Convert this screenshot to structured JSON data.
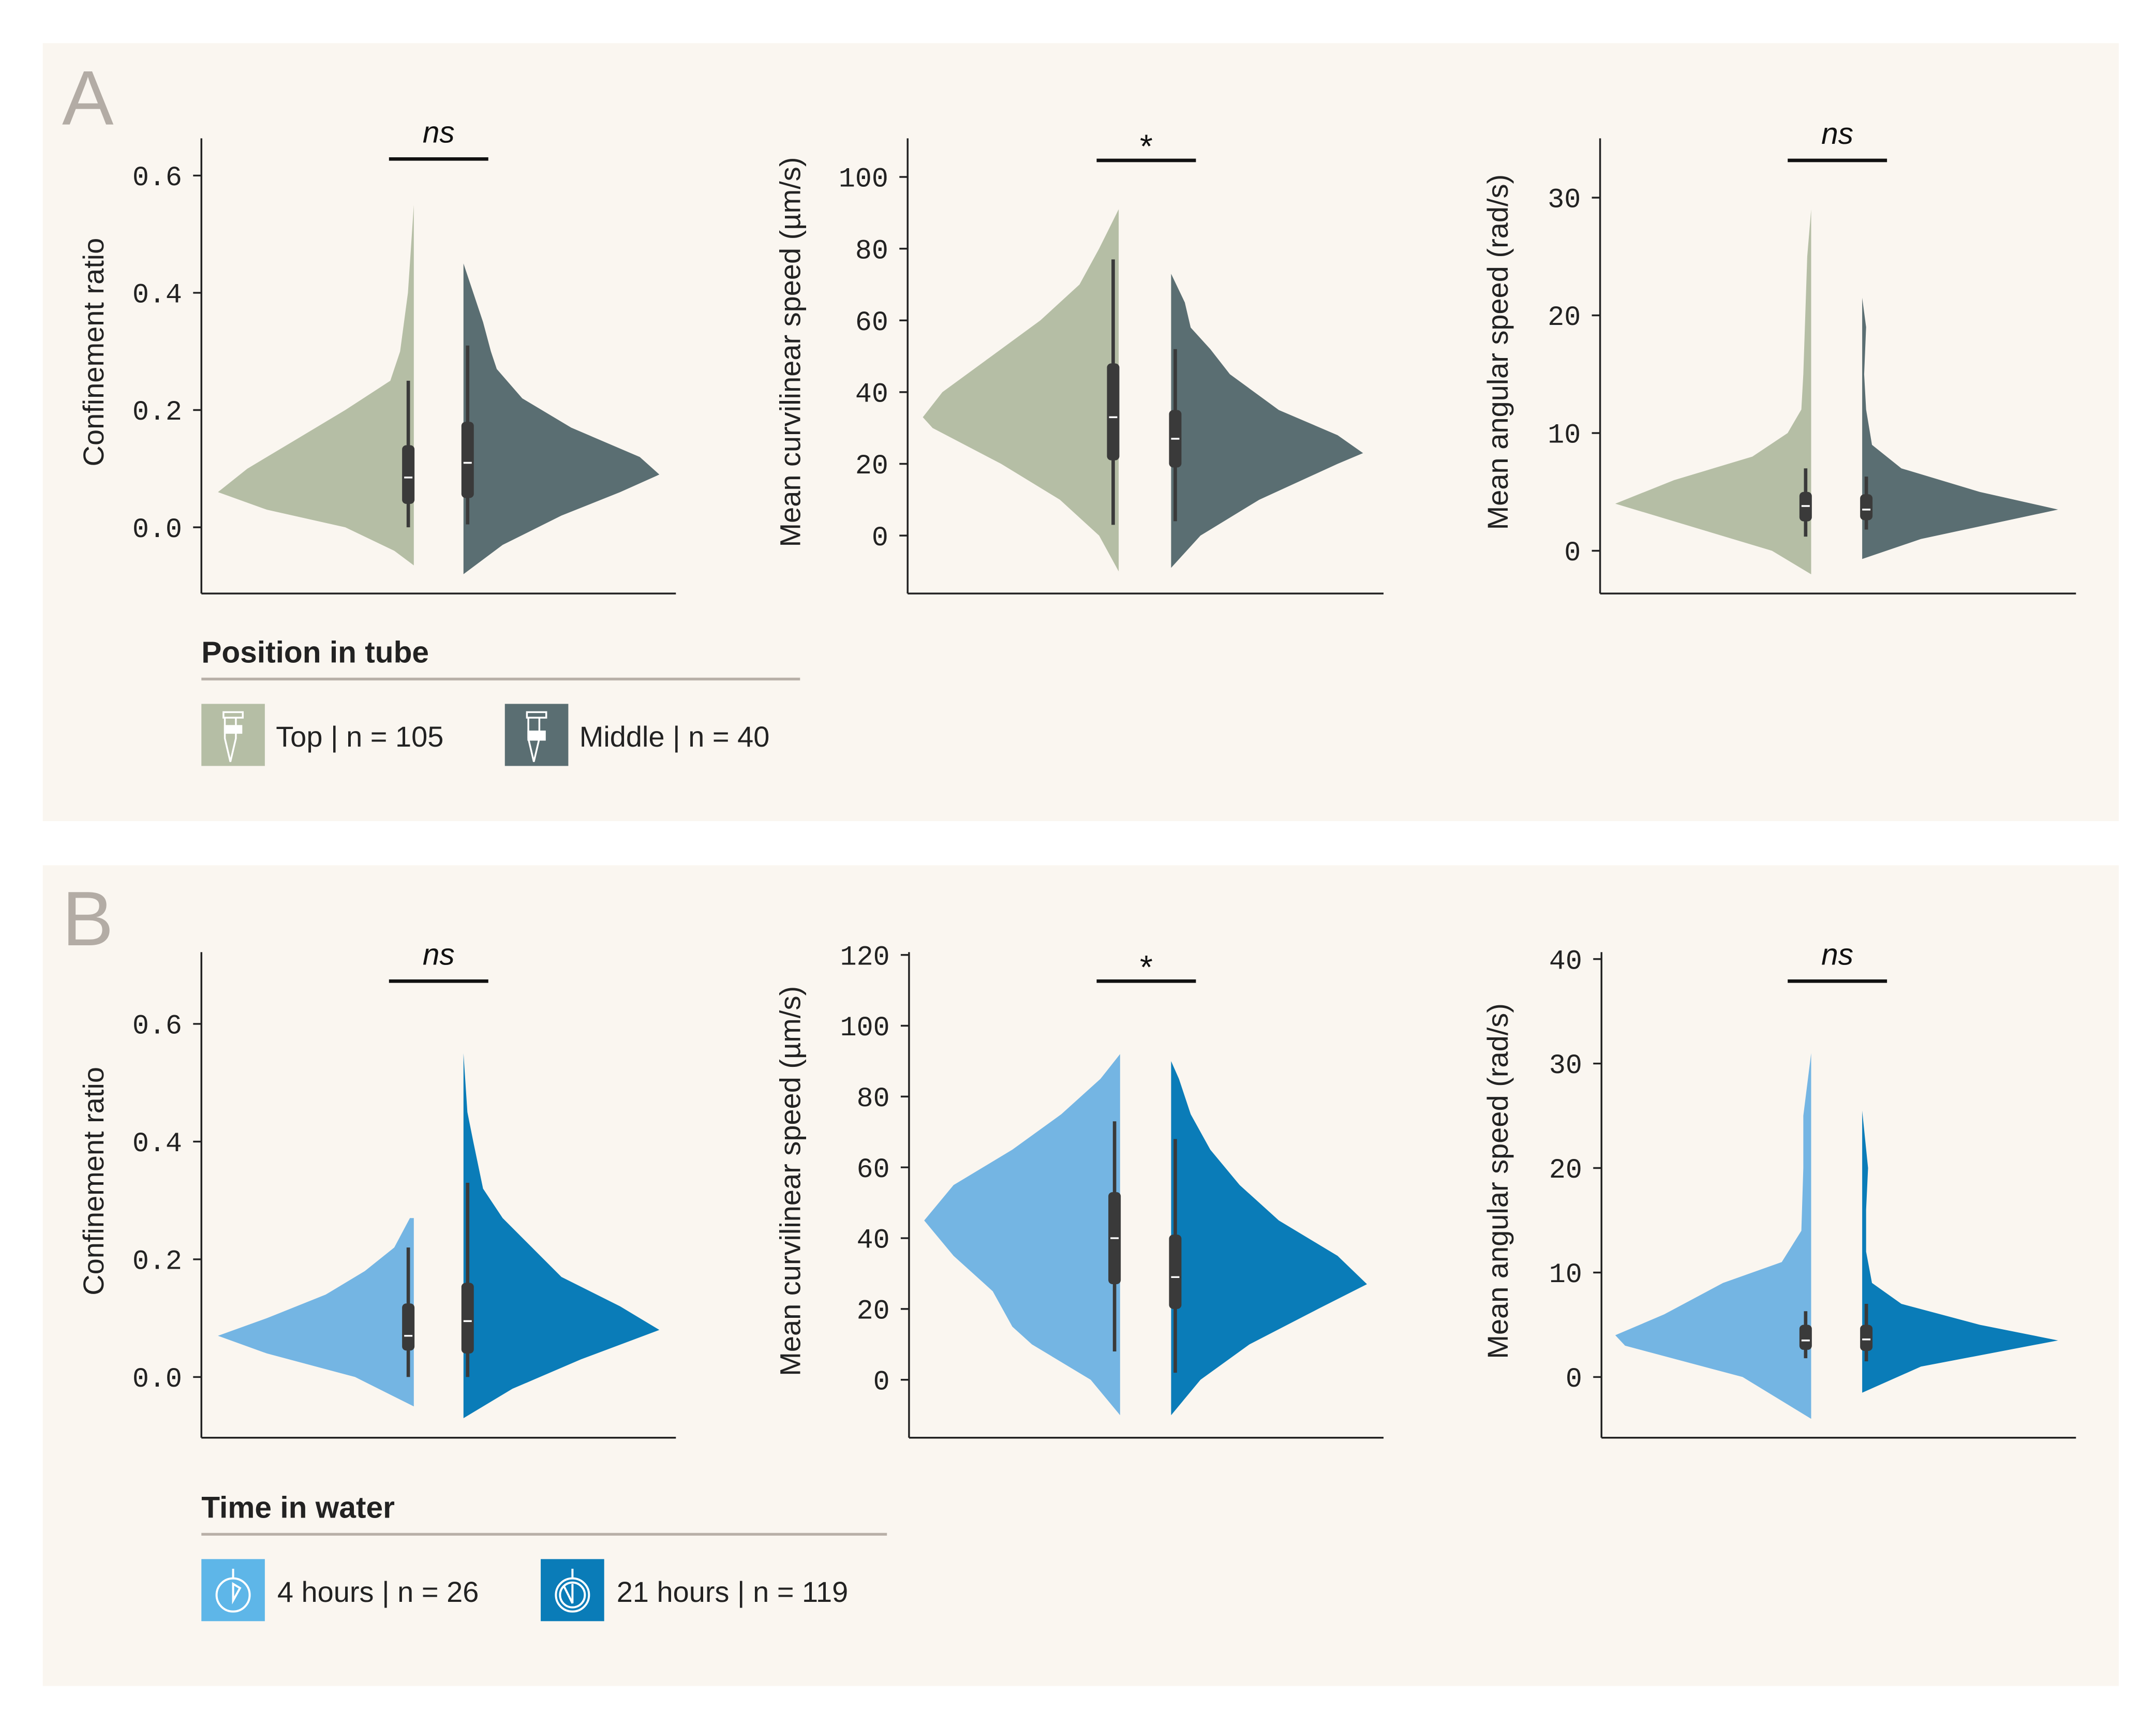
{
  "colors": {
    "top": "#b5bea5",
    "middle": "#5a6e72",
    "four_hours": "#74b5e3",
    "twenty_one_hours": "#0a7cb8",
    "panel_bg": "#faf6f0",
    "panel_letter": "#b3aca5",
    "box": "#3a3a3a"
  },
  "panels": [
    {
      "letter": "A",
      "legend": {
        "title": "Position in tube",
        "items": [
          {
            "label": "Top | n = 105",
            "icon": "tube-top-icon",
            "color_key": "top"
          },
          {
            "label": "Middle | n = 40",
            "icon": "tube-middle-icon",
            "color_key": "middle"
          }
        ]
      }
    },
    {
      "letter": "B",
      "legend": {
        "title": "Time in water",
        "items": [
          {
            "label": "4 hours | n = 26",
            "icon": "stopwatch-4h-icon",
            "color_key": "four_hours"
          },
          {
            "label": "21 hours  | n = 119",
            "icon": "stopwatch-21h-icon",
            "color_key": "twenty_one_hours"
          }
        ]
      }
    }
  ],
  "chart_data": [
    {
      "type": "violin",
      "panel": "A",
      "ylabel": "Confinement ratio",
      "significance": "ns",
      "yticks": [
        "0.0",
        "0.2",
        "0.4",
        "0.6"
      ],
      "ytick_values": [
        0,
        0.2,
        0.4,
        0.6
      ],
      "series": [
        {
          "name": "Top | n = 105",
          "color_key": "top",
          "side": "left",
          "density": [
            [
              -0.065,
              0
            ],
            [
              -0.04,
              0.1
            ],
            [
              0,
              0.35
            ],
            [
              0.03,
              0.75
            ],
            [
              0.06,
              1
            ],
            [
              0.1,
              0.85
            ],
            [
              0.15,
              0.6
            ],
            [
              0.2,
              0.35
            ],
            [
              0.25,
              0.12
            ],
            [
              0.3,
              0.07
            ],
            [
              0.35,
              0.05
            ],
            [
              0.4,
              0.03
            ],
            [
              0.45,
              0.02
            ],
            [
              0.5,
              0.01
            ],
            [
              0.55,
              0
            ]
          ],
          "box": {
            "whisker_low": 0,
            "q1": 0.04,
            "median": 0.085,
            "q3": 0.14,
            "whisker_high": 0.25
          }
        },
        {
          "name": "Middle | n = 40",
          "color_key": "middle",
          "side": "right",
          "density": [
            [
              -0.08,
              0
            ],
            [
              -0.03,
              0.2
            ],
            [
              0.02,
              0.5
            ],
            [
              0.06,
              0.8
            ],
            [
              0.09,
              1
            ],
            [
              0.12,
              0.9
            ],
            [
              0.17,
              0.55
            ],
            [
              0.22,
              0.3
            ],
            [
              0.27,
              0.17
            ],
            [
              0.3,
              0.14
            ],
            [
              0.35,
              0.1
            ],
            [
              0.4,
              0.05
            ],
            [
              0.45,
              0
            ]
          ],
          "box": {
            "whisker_low": 0.005,
            "q1": 0.05,
            "median": 0.11,
            "q3": 0.18,
            "whisker_high": 0.31
          }
        }
      ]
    },
    {
      "type": "violin",
      "panel": "A",
      "ylabel": "Mean curvilinear speed (µm/s)",
      "significance": "*",
      "yticks": [
        "0",
        "20",
        "40",
        "60",
        "80",
        "100"
      ],
      "ytick_values": [
        0,
        20,
        40,
        60,
        80,
        100
      ],
      "series": [
        {
          "name": "Top | n = 105",
          "color_key": "top",
          "side": "left",
          "density": [
            [
              -10,
              0
            ],
            [
              0,
              0.1
            ],
            [
              10,
              0.3
            ],
            [
              20,
              0.6
            ],
            [
              30,
              0.95
            ],
            [
              33,
              1
            ],
            [
              40,
              0.9
            ],
            [
              50,
              0.65
            ],
            [
              60,
              0.4
            ],
            [
              70,
              0.2
            ],
            [
              80,
              0.1
            ],
            [
              91,
              0
            ]
          ],
          "box": {
            "whisker_low": 3,
            "q1": 21,
            "median": 33,
            "q3": 48,
            "whisker_high": 77
          }
        },
        {
          "name": "Middle | n = 40",
          "color_key": "middle",
          "side": "right",
          "density": [
            [
              -9,
              0
            ],
            [
              0,
              0.15
            ],
            [
              10,
              0.45
            ],
            [
              20,
              0.85
            ],
            [
              23,
              0.98
            ],
            [
              28,
              0.85
            ],
            [
              35,
              0.55
            ],
            [
              45,
              0.3
            ],
            [
              52,
              0.2
            ],
            [
              58,
              0.1
            ],
            [
              65,
              0.07
            ],
            [
              73,
              0
            ]
          ],
          "box": {
            "whisker_low": 4,
            "q1": 19,
            "median": 27,
            "q3": 35,
            "whisker_high": 52
          }
        }
      ]
    },
    {
      "type": "violin",
      "panel": "A",
      "ylabel": "Mean angular speed (rad/s)",
      "significance": "ns",
      "yticks": [
        "0",
        "10",
        "20",
        "30"
      ],
      "ytick_values": [
        0,
        10,
        20,
        30
      ],
      "series": [
        {
          "name": "Top | n = 105",
          "color_key": "top",
          "side": "left",
          "density": [
            [
              -2,
              0
            ],
            [
              0,
              0.2
            ],
            [
              2,
              0.6
            ],
            [
              4,
              1
            ],
            [
              6,
              0.7
            ],
            [
              8,
              0.3
            ],
            [
              10,
              0.12
            ],
            [
              12,
              0.05
            ],
            [
              15,
              0.04
            ],
            [
              20,
              0.03
            ],
            [
              25,
              0.02
            ],
            [
              29,
              0
            ]
          ],
          "box": {
            "whisker_low": 1.2,
            "q1": 2.5,
            "median": 3.8,
            "q3": 5,
            "whisker_high": 7
          }
        },
        {
          "name": "Middle | n = 40",
          "color_key": "middle",
          "side": "right",
          "density": [
            [
              -0.7,
              0
            ],
            [
              1,
              0.3
            ],
            [
              3.5,
              1
            ],
            [
              5,
              0.6
            ],
            [
              7,
              0.2
            ],
            [
              9,
              0.05
            ],
            [
              12,
              0.02
            ],
            [
              15,
              0.01
            ],
            [
              19,
              0.02
            ],
            [
              21.5,
              0
            ]
          ],
          "box": {
            "whisker_low": 1.8,
            "q1": 2.6,
            "median": 3.5,
            "q3": 4.8,
            "whisker_high": 6.3
          }
        }
      ]
    },
    {
      "type": "violin",
      "panel": "B",
      "ylabel": "Confinement ratio",
      "significance": "ns",
      "yticks": [
        "0.0",
        "0.2",
        "0.4",
        "0.6"
      ],
      "ytick_values": [
        0,
        0.2,
        0.4,
        0.6
      ],
      "series": [
        {
          "name": "4 hours | n = 26",
          "color_key": "four_hours",
          "side": "left",
          "density": [
            [
              -0.05,
              0
            ],
            [
              0,
              0.3
            ],
            [
              0.04,
              0.75
            ],
            [
              0.07,
              1
            ],
            [
              0.1,
              0.75
            ],
            [
              0.14,
              0.45
            ],
            [
              0.18,
              0.25
            ],
            [
              0.22,
              0.1
            ],
            [
              0.27,
              0.02
            ]
          ],
          "box": {
            "whisker_low": 0,
            "q1": 0.045,
            "median": 0.07,
            "q3": 0.125,
            "whisker_high": 0.22
          }
        },
        {
          "name": "21 hours | n = 119",
          "color_key": "twenty_one_hours",
          "side": "right",
          "density": [
            [
              -0.07,
              0
            ],
            [
              -0.02,
              0.25
            ],
            [
              0.03,
              0.6
            ],
            [
              0.08,
              1
            ],
            [
              0.12,
              0.8
            ],
            [
              0.17,
              0.5
            ],
            [
              0.22,
              0.35
            ],
            [
              0.27,
              0.2
            ],
            [
              0.32,
              0.1
            ],
            [
              0.4,
              0.05
            ],
            [
              0.45,
              0.02
            ],
            [
              0.55,
              0
            ]
          ],
          "box": {
            "whisker_low": 0,
            "q1": 0.04,
            "median": 0.095,
            "q3": 0.16,
            "whisker_high": 0.33
          }
        }
      ]
    },
    {
      "type": "violin",
      "panel": "B",
      "ylabel": "Mean curvilinear speed (µm/s)",
      "significance": "*",
      "yticks": [
        "0",
        "20",
        "40",
        "60",
        "80",
        "100",
        "120"
      ],
      "ytick_values": [
        0,
        20,
        40,
        60,
        80,
        100,
        120
      ],
      "series": [
        {
          "name": "4 hours | n = 26",
          "color_key": "four_hours",
          "side": "left",
          "density": [
            [
              -10,
              0
            ],
            [
              0,
              0.15
            ],
            [
              10,
              0.45
            ],
            [
              15,
              0.55
            ],
            [
              25,
              0.65
            ],
            [
              35,
              0.85
            ],
            [
              45,
              1
            ],
            [
              55,
              0.85
            ],
            [
              65,
              0.55
            ],
            [
              75,
              0.3
            ],
            [
              85,
              0.1
            ],
            [
              92,
              0
            ]
          ],
          "box": {
            "whisker_low": 8,
            "q1": 27,
            "median": 40,
            "q3": 53,
            "whisker_high": 73
          }
        },
        {
          "name": "21 hours | n = 119",
          "color_key": "twenty_one_hours",
          "side": "right",
          "density": [
            [
              -10,
              0
            ],
            [
              0,
              0.15
            ],
            [
              10,
              0.4
            ],
            [
              20,
              0.75
            ],
            [
              27,
              1
            ],
            [
              35,
              0.85
            ],
            [
              45,
              0.55
            ],
            [
              55,
              0.35
            ],
            [
              65,
              0.2
            ],
            [
              75,
              0.1
            ],
            [
              85,
              0.04
            ],
            [
              90,
              0
            ]
          ],
          "box": {
            "whisker_low": 2,
            "q1": 20,
            "median": 29,
            "q3": 41,
            "whisker_high": 68
          }
        }
      ]
    },
    {
      "type": "violin",
      "panel": "B",
      "ylabel": "Mean angular speed (rad/s)",
      "significance": "ns",
      "yticks": [
        "0",
        "10",
        "20",
        "30",
        "40"
      ],
      "ytick_values": [
        0,
        10,
        20,
        30,
        40
      ],
      "series": [
        {
          "name": "4 hours | n = 26",
          "color_key": "four_hours",
          "side": "left",
          "density": [
            [
              -4,
              0
            ],
            [
              0,
              0.35
            ],
            [
              3,
              0.95
            ],
            [
              4,
              1
            ],
            [
              6,
              0.75
            ],
            [
              9,
              0.45
            ],
            [
              11,
              0.15
            ],
            [
              14,
              0.05
            ],
            [
              20,
              0.04
            ],
            [
              25,
              0.04
            ],
            [
              31,
              0
            ]
          ],
          "box": {
            "whisker_low": 1.8,
            "q1": 2.6,
            "median": 3.5,
            "q3": 5,
            "whisker_high": 6.3
          }
        },
        {
          "name": "21 hours | n = 119",
          "color_key": "twenty_one_hours",
          "side": "right",
          "density": [
            [
              -1.5,
              0
            ],
            [
              1,
              0.3
            ],
            [
              3.5,
              1
            ],
            [
              5,
              0.6
            ],
            [
              7,
              0.2
            ],
            [
              9,
              0.05
            ],
            [
              12,
              0.02
            ],
            [
              16,
              0.02
            ],
            [
              20,
              0.03
            ],
            [
              25.5,
              0
            ]
          ],
          "box": {
            "whisker_low": 1.5,
            "q1": 2.5,
            "median": 3.6,
            "q3": 5,
            "whisker_high": 7
          }
        }
      ]
    }
  ]
}
